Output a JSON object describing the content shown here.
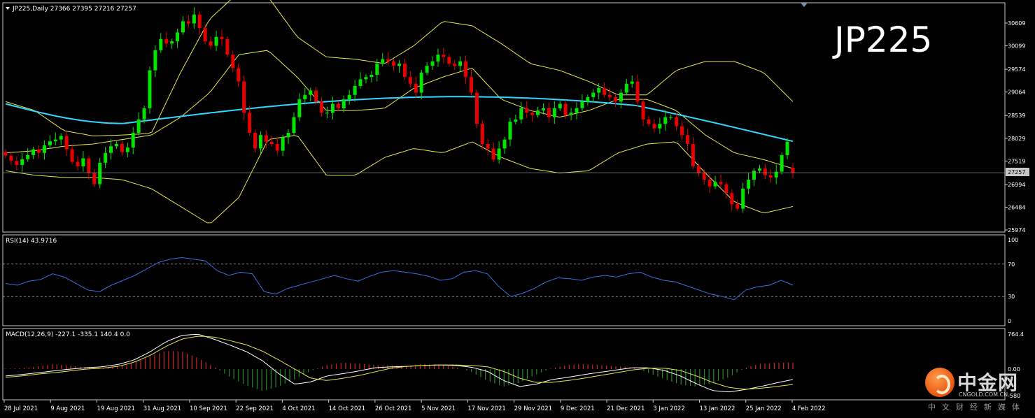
{
  "main_header": {
    "text": "JP225,Daily  27366 27395 27216 27257"
  },
  "watermark_symbol": "JP225",
  "last_price_label": "27257",
  "rsi_header": "RSI(14) 43.9716",
  "macd_header": "MACD(12,26,9) -227.1 -335.1 140.4 0.0",
  "colors": {
    "bull_candle": "#00e600",
    "bear_candle": "#e60000",
    "ma_line": "#33d6ff",
    "bollinger": "#e6e64d",
    "rsi_line": "#3a6fe0",
    "macd_hist_pos": "#cc2a2a",
    "macd_hist_neg": "#2a8a2a"
  },
  "logo": {
    "cn": "中金网",
    "url": "CNGOLD.COM.CN",
    "sub": "中文财经新媒体"
  },
  "chart_data": [
    {
      "type": "candlestick",
      "symbol": "JP225",
      "timeframe": "Daily",
      "title": "JP225,Daily  27366 27395 27216 27257",
      "last_ohlc": {
        "open": 27366,
        "high": 27395,
        "low": 27216,
        "close": 27257
      },
      "ylim": [
        25974,
        30900
      ],
      "yticks": [
        30609,
        30099,
        29574,
        29064,
        28539,
        28029,
        27519,
        26994,
        26484,
        25974
      ],
      "xticks": [
        "28 Jul 2021",
        "9 Aug 2021",
        "19 Aug 2021",
        "31 Aug 2021",
        "10 Sep 2021",
        "22 Sep 2021",
        "4 Oct 2021",
        "14 Oct 2021",
        "26 Oct 2021",
        "5 Nov 2021",
        "17 Nov 2021",
        "29 Nov 2021",
        "9 Dec 2021",
        "21 Dec 2021",
        "3 Jan 2022",
        "13 Jan 2022",
        "25 Jan 2022",
        "4 Feb 2022"
      ],
      "closes": [
        27640,
        27520,
        27430,
        27560,
        27650,
        27780,
        27700,
        27870,
        27960,
        28000,
        28080,
        27780,
        27500,
        27400,
        27580,
        27250,
        27000,
        27480,
        27700,
        27850,
        27900,
        27720,
        27820,
        28150,
        28450,
        28700,
        29550,
        30000,
        30250,
        30150,
        30200,
        30400,
        30650,
        30600,
        30800,
        30500,
        30200,
        30100,
        30300,
        30250,
        29900,
        29600,
        29300,
        28600,
        28150,
        27800,
        28100,
        27950,
        27900,
        27750,
        28050,
        28150,
        28500,
        28900,
        29000,
        29100,
        28850,
        28600,
        28600,
        28800,
        28700,
        28900,
        29000,
        29200,
        29350,
        29400,
        29450,
        29700,
        29800,
        29750,
        29650,
        29700,
        29400,
        29250,
        29050,
        29500,
        29650,
        29750,
        29900,
        29850,
        29700,
        29650,
        29750,
        29400,
        29050,
        28350,
        27900,
        27800,
        27550,
        27800,
        28000,
        28400,
        28450,
        28700,
        28600,
        28550,
        28650,
        28700,
        28500,
        28700,
        28800,
        28550,
        28600,
        28700,
        28850,
        28950,
        29050,
        29150,
        29000,
        28950,
        28850,
        29050,
        29250,
        29300,
        28850,
        28450,
        28350,
        28250,
        28350,
        28500,
        28500,
        28300,
        28100,
        27900,
        27400,
        27250,
        27100,
        26950,
        27050,
        27000,
        26800,
        26550,
        26450,
        26900,
        27100,
        27300,
        27350,
        27200,
        27150,
        27280,
        27650,
        27950,
        27257
      ],
      "moving_average": {
        "start": 28800,
        "low": 28360,
        "end": 28560
      },
      "bollinger": {
        "upper": [
          28850,
          28650,
          28200,
          28080,
          28100,
          28140,
          29500,
          30700,
          31300,
          31200,
          30300,
          29850,
          29800,
          29700,
          30100,
          30650,
          30550,
          30150,
          29700,
          29550,
          29300,
          29000,
          29000,
          29550,
          29750,
          29750,
          29500,
          28850
        ],
        "middle": [
          27700,
          27750,
          27850,
          27900,
          28000,
          28100,
          28500,
          29050,
          29900,
          30000,
          29400,
          28650,
          28650,
          28700,
          29150,
          29400,
          29600,
          28900,
          28650,
          28500,
          28650,
          28900,
          28900,
          28650,
          28100,
          27700,
          27550,
          27350
        ],
        "lower": [
          27300,
          27200,
          27150,
          27150,
          27100,
          26900,
          26500,
          26100,
          26700,
          28000,
          28100,
          27200,
          27200,
          27600,
          27800,
          27700,
          27950,
          27600,
          27350,
          27250,
          27300,
          27700,
          27900,
          27950,
          27250,
          26600,
          26350,
          26500
        ]
      },
      "last_price_line": 27257
    },
    {
      "type": "line",
      "title": "RSI(14) 43.9716",
      "ylim": [
        0,
        100
      ],
      "yticks": [
        100,
        70,
        30,
        0
      ],
      "levels": [
        70,
        30
      ],
      "values": [
        46,
        44,
        49,
        51,
        58,
        54,
        46,
        38,
        36,
        44,
        50,
        56,
        64,
        72,
        76,
        78,
        76,
        74,
        62,
        56,
        60,
        58,
        36,
        33,
        40,
        44,
        48,
        52,
        56,
        52,
        49,
        55,
        60,
        62,
        60,
        58,
        55,
        50,
        52,
        60,
        62,
        58,
        42,
        30,
        34,
        40,
        48,
        53,
        52,
        50,
        54,
        56,
        54,
        58,
        60,
        54,
        50,
        48,
        43,
        38,
        33,
        30,
        26,
        38,
        42,
        44,
        50,
        43.9716
      ]
    },
    {
      "type": "bar+line",
      "title": "MACD(12,26,9) -227.1 -335.1 140.4 0.0",
      "ylim": [
        -580,
        764.4
      ],
      "yticks": [
        764.4,
        0.0,
        -580
      ],
      "histogram": [
        10,
        20,
        60,
        110,
        80,
        40,
        20,
        60,
        150,
        280,
        400,
        380,
        240,
        40,
        -180,
        -360,
        -480,
        -380,
        -220,
        -40,
        90,
        140,
        120,
        90,
        80,
        70,
        110,
        100,
        40,
        -60,
        -260,
        -380,
        -300,
        -120,
        20,
        90,
        110,
        90,
        60,
        40,
        -80,
        -220,
        -340,
        -380,
        -300,
        -180,
        20,
        120,
        140,
        140
      ],
      "macd_line": [
        -150,
        -120,
        -80,
        -40,
        0,
        30,
        50,
        100,
        200,
        380,
        600,
        740,
        760,
        650,
        520,
        380,
        180,
        -100,
        -330,
        -280,
        -150,
        -100,
        -40,
        30,
        50,
        60,
        80,
        90,
        80,
        40,
        -50,
        -250,
        -380,
        -330,
        -230,
        -180,
        -120,
        -70,
        -20,
        30,
        30,
        -30,
        -150,
        -320,
        -470,
        -500,
        -450,
        -380,
        -300,
        -227.1
      ],
      "signal_line": [
        -180,
        -150,
        -110,
        -80,
        -40,
        0,
        20,
        60,
        150,
        300,
        500,
        660,
        720,
        700,
        620,
        530,
        390,
        200,
        0,
        -200,
        -250,
        -200,
        -140,
        -60,
        20,
        60,
        80,
        90,
        90,
        80,
        50,
        -50,
        -200,
        -290,
        -290,
        -250,
        -200,
        -140,
        -80,
        -20,
        20,
        20,
        -30,
        -150,
        -290,
        -400,
        -440,
        -420,
        -380,
        -335.1
      ]
    }
  ]
}
